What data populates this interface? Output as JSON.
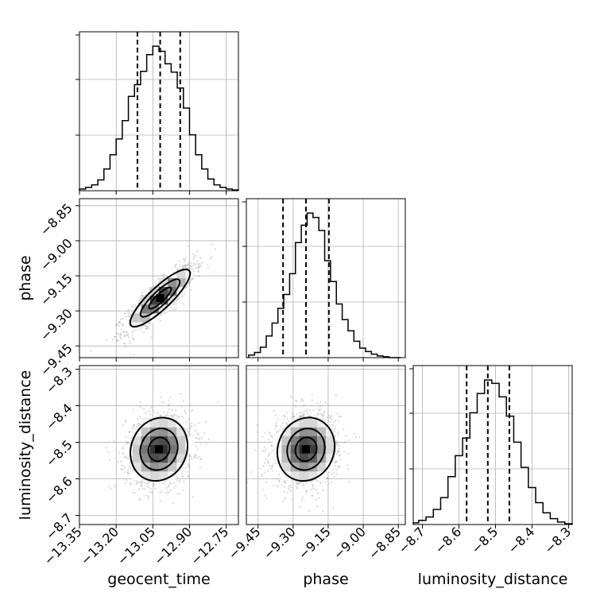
{
  "chart_data": {
    "type": "corner",
    "parameters": [
      "geocent_time",
      "phase",
      "luminosity_distance"
    ],
    "ranges": {
      "geocent_time": [
        -13.35,
        -12.7
      ],
      "phase": [
        -9.5,
        -8.82
      ],
      "luminosity_distance": [
        -8.725,
        -8.29
      ]
    },
    "ticks": {
      "geocent_time": [
        -13.35,
        -13.2,
        -13.05,
        -12.9,
        -12.75
      ],
      "phase": [
        -9.45,
        -9.3,
        -9.15,
        -9.0,
        -8.85
      ],
      "luminosity_distance": [
        -8.7,
        -8.6,
        -8.5,
        -8.4,
        -8.3
      ]
    },
    "tick_labels": {
      "geocent_time": [
        "−13.35",
        "−13.20",
        "−13.05",
        "−12.90",
        "−12.75"
      ],
      "phase": [
        "−9.45",
        "−9.30",
        "−9.15",
        "−9.00",
        "−8.85"
      ],
      "luminosity_distance": [
        "−8.7",
        "−8.6",
        "−8.5",
        "−8.4",
        "−8.3"
      ]
    },
    "quantiles": {
      "geocent_time": [
        -13.113,
        -13.02,
        -12.938
      ],
      "phase": [
        -9.343,
        -9.245,
        -9.147
      ],
      "luminosity_distance": [
        -8.579,
        -8.521,
        -8.462
      ]
    },
    "histograms": {
      "geocent_time": {
        "edges": [
          -13.35,
          -13.325,
          -13.3,
          -13.275,
          -13.25,
          -13.225,
          -13.2,
          -13.175,
          -13.15,
          -13.125,
          -13.1,
          -13.075,
          -13.05,
          -13.025,
          -13.0,
          -12.975,
          -12.95,
          -12.925,
          -12.9,
          -12.875,
          -12.85,
          -12.825,
          -12.8,
          -12.775,
          -12.75,
          -12.725,
          -12.7
        ],
        "counts": [
          2,
          4,
          7,
          13,
          26,
          43,
          62,
          84,
          113,
          127,
          143,
          163,
          173,
          167,
          152,
          142,
          123,
          99,
          67,
          43,
          26,
          14,
          7,
          4,
          2,
          1
        ]
      },
      "phase": {
        "edges": [
          -9.49,
          -9.465,
          -9.44,
          -9.415,
          -9.39,
          -9.365,
          -9.34,
          -9.315,
          -9.29,
          -9.265,
          -9.24,
          -9.215,
          -9.19,
          -9.165,
          -9.14,
          -9.115,
          -9.09,
          -9.065,
          -9.04,
          -9.015,
          -8.99,
          -8.965,
          -8.94,
          -8.915,
          -8.89,
          -8.865,
          -8.84
        ],
        "counts": [
          3,
          6,
          12,
          25,
          40,
          57,
          73,
          97,
          133,
          153,
          167,
          162,
          147,
          112,
          88,
          62,
          44,
          31,
          19,
          11,
          7,
          4,
          2,
          1,
          0,
          0
        ]
      },
      "luminosity_distance": {
        "edges": [
          -8.725,
          -8.71,
          -8.69,
          -8.67,
          -8.65,
          -8.63,
          -8.61,
          -8.59,
          -8.57,
          -8.55,
          -8.53,
          -8.51,
          -8.49,
          -8.47,
          -8.45,
          -8.43,
          -8.41,
          -8.39,
          -8.37,
          -8.35,
          -8.33,
          -8.31,
          -8.29
        ],
        "counts": [
          2,
          5,
          9,
          18,
          32,
          57,
          82,
          103,
          133,
          156,
          172,
          168,
          152,
          129,
          98,
          68,
          44,
          26,
          14,
          7,
          3,
          1
        ]
      }
    },
    "hist2d": [
      {
        "x": "geocent_time",
        "y": "phase",
        "mean": [
          -13.02,
          -9.245
        ],
        "sd": [
          0.065,
          0.065
        ],
        "corr": 0.86,
        "contour_levels": [
          0.2,
          0.5,
          0.8
        ]
      },
      {
        "x": "geocent_time",
        "y": "luminosity_distance",
        "mean": [
          -13.025,
          -8.519
        ],
        "sd": [
          0.062,
          0.046
        ],
        "corr": 0.12,
        "contour_levels": [
          0.2,
          0.5,
          0.8
        ]
      },
      {
        "x": "phase",
        "y": "luminosity_distance",
        "mean": [
          -9.245,
          -8.519
        ],
        "sd": [
          0.065,
          0.046
        ],
        "corr": 0.1,
        "contour_levels": [
          0.2,
          0.5,
          0.8
        ]
      }
    ],
    "grid": true,
    "colors": {
      "line": "#000000",
      "grid": "#b0b0b0",
      "points": "#9a9a9a"
    }
  }
}
